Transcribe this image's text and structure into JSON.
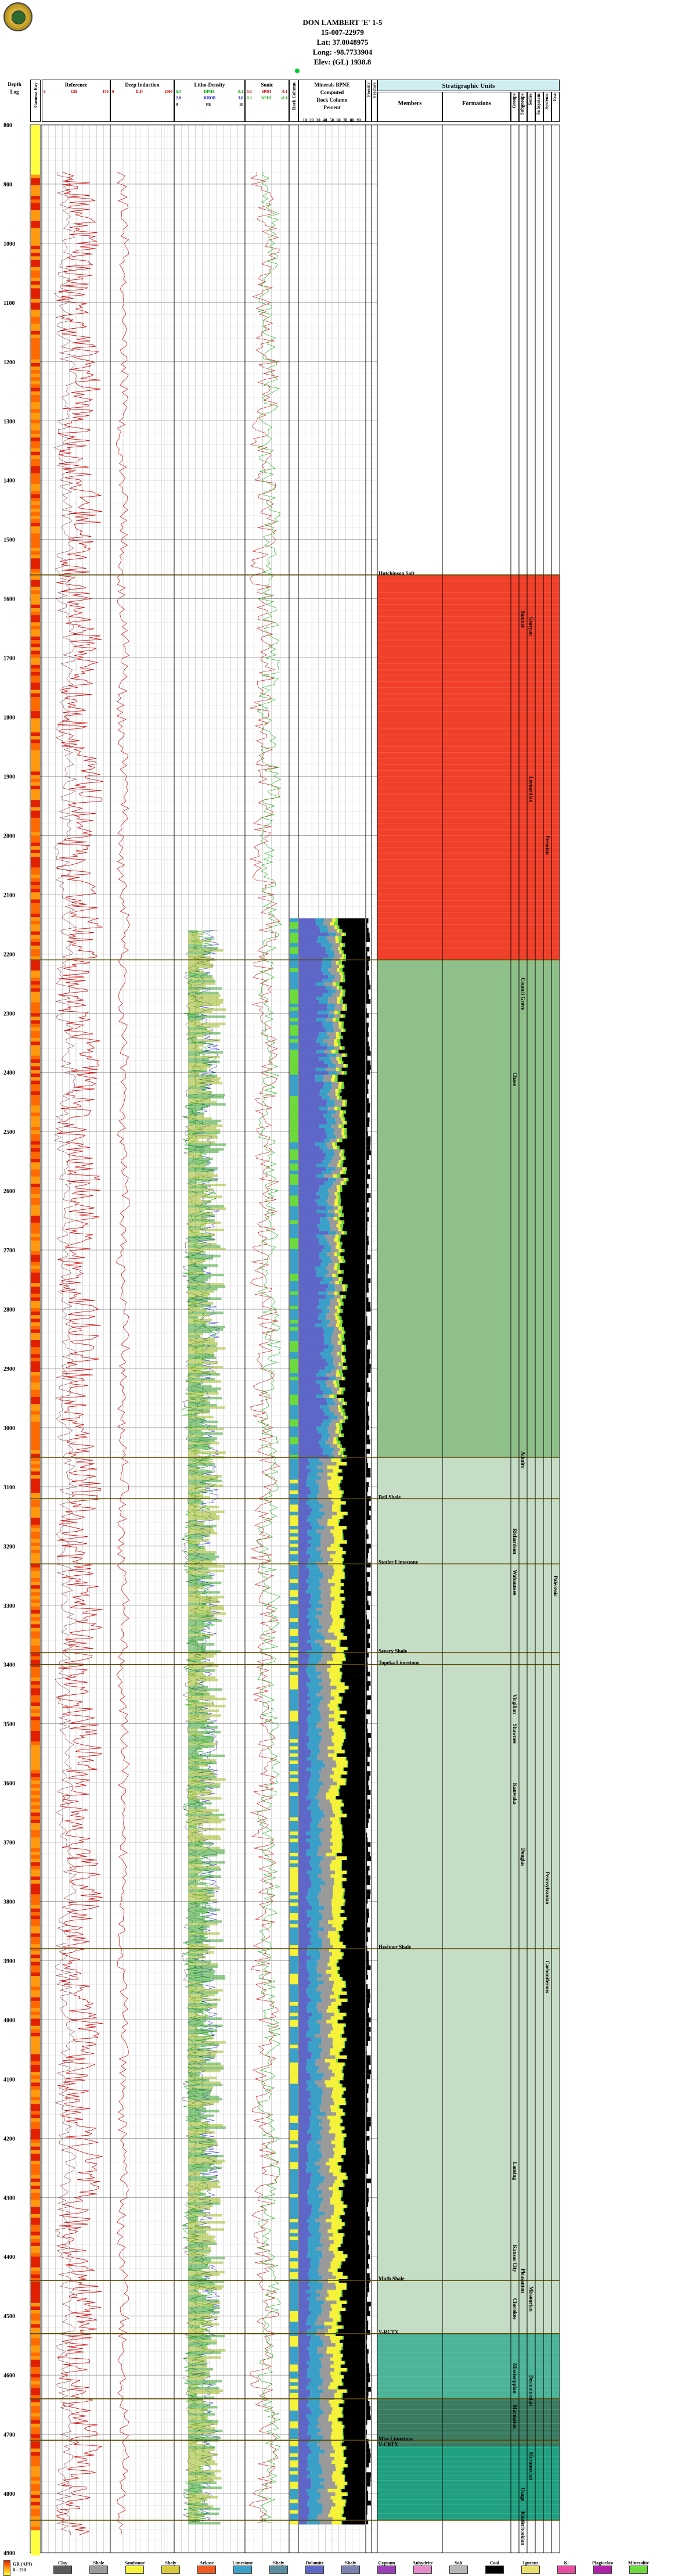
{
  "header": {
    "well_name": "DON LAMBERT 'E' 1-5",
    "location": "15-007-22979",
    "lat": "Lat: 37.0048975",
    "long": "Long: -98.7733904",
    "elev": "Elev: (GL) 1938.8"
  },
  "tracks": {
    "depth_label_1": "Depth",
    "depth_label_2": "Log",
    "gamma_ray_label": "Gamma Ray",
    "reference": {
      "label": "Reference",
      "curve": "GR",
      "min": "0",
      "max": "150",
      "unit": "API"
    },
    "deep_induction": {
      "label": "Deep Induction",
      "curve": "ILD",
      "min": "0",
      "max": "1000"
    },
    "litho_density": {
      "label": "Litho-Density",
      "rows": [
        {
          "curve": "DPHI",
          "min": "0.3",
          "max": "-0.1",
          "color": "#00aa00"
        },
        {
          "curve": "RHOB",
          "min": "2.0",
          "max": "3.0",
          "color": "#0000cc"
        },
        {
          "curve": "PE",
          "min": "0",
          "max": "10",
          "color": "#000000"
        }
      ]
    },
    "sonic": {
      "label": "Sonic",
      "rows": [
        {
          "curve": "SPHI",
          "min": "0.3",
          "max": "-0.1",
          "color": "#cc0000"
        },
        {
          "curve": "NPHI",
          "min": "0.3",
          "max": "-0.1",
          "color": "#00aa00"
        }
      ]
    },
    "rock_column": {
      "label": "Rock Column"
    },
    "mineral": {
      "label_1": "Minerals BPNE",
      "label_2": "Computed",
      "label_3": "Rock Column",
      "label_4": "Percent",
      "ticks": [
        "10",
        "20",
        "30",
        "40",
        "50",
        "60",
        "70",
        "80",
        "90"
      ]
    },
    "porosity": {
      "label": "Porosity"
    },
    "flag": {
      "label": "Fracture"
    }
  },
  "strat": {
    "title": "Stratigraphic Units",
    "members_label": "Members",
    "formations_label": "Formations",
    "right_columns": [
      "Groups",
      "Subgroups",
      "Series",
      "Subsystem",
      "Systems",
      "Era"
    ]
  },
  "depths": [
    "900",
    "1000",
    "1100",
    "1200",
    "1300",
    "1400",
    "1500",
    "1600",
    "1700",
    "1800",
    "1900",
    "2000",
    "2100",
    "2200",
    "2300",
    "2400",
    "2500",
    "2600",
    "2700",
    "2800",
    "2900",
    "3000",
    "3100",
    "3200",
    "3300",
    "3400",
    "3500",
    "3600",
    "3700",
    "3800",
    "3900",
    "4000",
    "4100",
    "4200",
    "4300",
    "4400",
    "4500",
    "4600",
    "4700",
    "4800",
    "4900"
  ],
  "top_depth": "800",
  "units": {
    "members": [
      {
        "name": "Hutchinson Salt",
        "depth": 1560
      },
      {
        "name": "Beil Shale",
        "depth": 3120
      },
      {
        "name": "Stotler Limestone",
        "depth": 3230
      },
      {
        "name": "Severy Shale",
        "depth": 3380
      },
      {
        "name": "Topeka Limestone",
        "depth": 3400
      },
      {
        "name": "Heebner Shale",
        "depth": 3880
      },
      {
        "name": "Muth Shale",
        "depth": 4440
      },
      {
        "name": "V-RCTX",
        "depth": 4530
      },
      {
        "name": "Miss Limestone",
        "depth": 4710
      },
      {
        "name": "V-CBTX",
        "depth": 4720
      }
    ],
    "formations": [
      {
        "name": "Chase",
        "depth": 2400
      },
      {
        "name": "Richardson",
        "depth": 3170
      },
      {
        "name": "Wabaunsee",
        "depth": 3240
      },
      {
        "name": "Shawnee",
        "depth": 3500
      },
      {
        "name": "Kanwaka",
        "depth": 3600
      },
      {
        "name": "Virgilian",
        "depth": 3450
      },
      {
        "name": "Lansing",
        "depth": 4240
      },
      {
        "name": "Kansas City",
        "depth": 4380
      },
      {
        "name": "Marmaton",
        "depth": 4650
      },
      {
        "name": "Mississippian",
        "depth": 4580
      },
      {
        "name": "Cherokee",
        "depth": 4470
      }
    ],
    "groups": [
      {
        "name": "Sumner",
        "depth": 1620
      },
      {
        "name": "Council Grove",
        "depth": 2240
      },
      {
        "name": "Admire",
        "depth": 3040
      },
      {
        "name": "Douglas",
        "depth": 3710
      },
      {
        "name": "Pleasanton",
        "depth": 4420
      },
      {
        "name": "Osage",
        "depth": 4790
      },
      {
        "name": "Kinderhookian",
        "depth": 4830
      }
    ],
    "series": [
      {
        "name": "Gearyan",
        "depth": 1630
      },
      {
        "name": "Leonardian",
        "depth": 1900
      },
      {
        "name": "Missourian",
        "depth": 4450
      },
      {
        "name": "Desmoinesian",
        "depth": 4600
      },
      {
        "name": "Meramecian",
        "depth": 4730
      }
    ],
    "systems": [
      {
        "name": "Permian",
        "depth": 2000
      },
      {
        "name": "Pennsylvanian",
        "depth": 3750
      },
      {
        "name": "Carboniferous",
        "depth": 3900
      }
    ],
    "era": [
      {
        "name": "Paleozoic",
        "depth": 3250
      }
    ]
  },
  "legend": {
    "items": [
      {
        "name": "Clay",
        "color": "#5a5a5a"
      },
      {
        "name": "Shale",
        "color": "#9a9a9a"
      },
      {
        "name": "Sandstone",
        "color": "#f6f23a"
      },
      {
        "name": "Shaly Sandstone",
        "color": "#d8c93a"
      },
      {
        "name": "Arkose",
        "color": "#f05a1e"
      },
      {
        "name": "Limestone",
        "color": "#3aa0c8"
      },
      {
        "name": "Shaly Carbonate",
        "color": "#5b8ca0"
      },
      {
        "name": "Dolomite",
        "color": "#5e67c8"
      },
      {
        "name": "Shaly Dolomite",
        "color": "#7a82b0"
      },
      {
        "name": "Gypsum",
        "color": "#9b3fb6"
      },
      {
        "name": "Anhydrite",
        "color": "#e58ac9"
      },
      {
        "name": "Salt",
        "color": "#b6b6b6"
      },
      {
        "name": "Coal",
        "color": "#000000"
      },
      {
        "name": "Igneous",
        "color": "#e8e06a"
      },
      {
        "name": "K-Feldspar",
        "color": "#e84ea0"
      },
      {
        "name": "Plagioclase",
        "color": "#b020a8"
      },
      {
        "name": "Mineralite",
        "color": "#6cd93c"
      }
    ],
    "gr_key_label": "GR (API)",
    "gr_key_min": "0",
    "gr_key_max": "150"
  },
  "colors": {
    "salt_red": "#f0402a",
    "permian_green": "#8fc08a",
    "penn_pale": "#c5dcc5",
    "miss_teal": "#20a080",
    "miss_dark": "#3a7a60",
    "marker_line": "#5a4a00"
  }
}
